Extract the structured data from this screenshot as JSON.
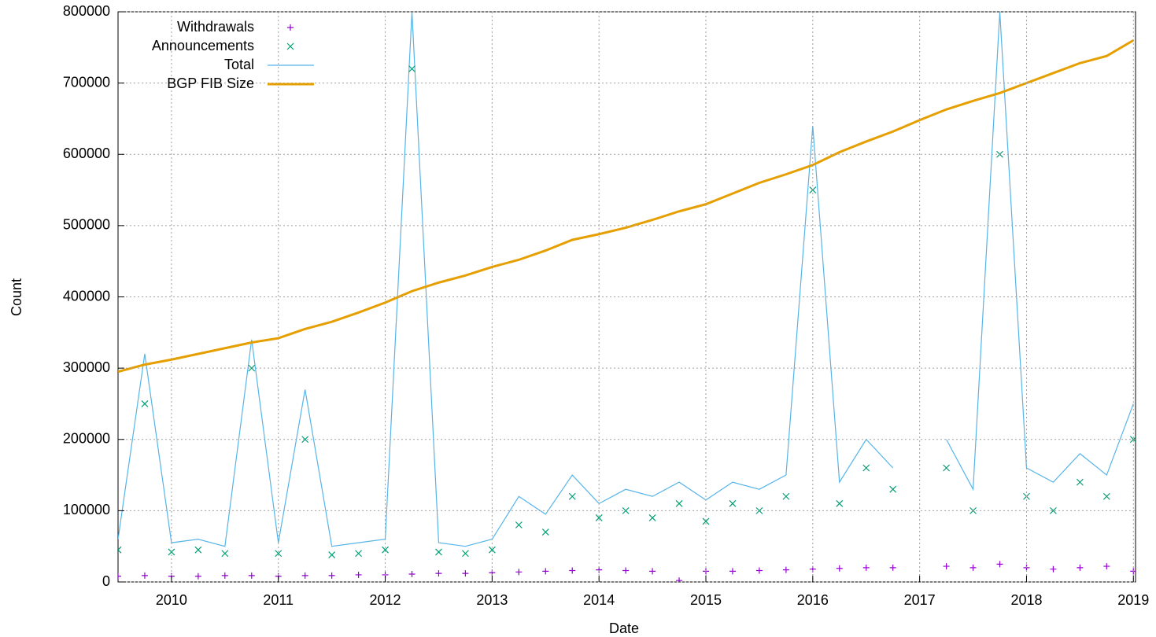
{
  "chart_data": {
    "type": "line",
    "x_label": "Date",
    "y_label": "Count",
    "x": [
      2009.5,
      2009.75,
      2010,
      2010.25,
      2010.5,
      2010.75,
      2011,
      2011.25,
      2011.5,
      2011.75,
      2012,
      2012.25,
      2012.5,
      2012.75,
      2013,
      2013.25,
      2013.5,
      2013.75,
      2014,
      2014.25,
      2014.5,
      2014.75,
      2015,
      2015.25,
      2015.5,
      2015.75,
      2016,
      2016.25,
      2016.5,
      2016.75,
      2017,
      2017.25,
      2017.5,
      2017.75,
      2018,
      2018.25,
      2018.5,
      2018.75,
      2019
    ],
    "xlim": [
      2009.5,
      2019.02
    ],
    "xticks": [
      2010,
      2011,
      2012,
      2013,
      2014,
      2015,
      2016,
      2017,
      2018,
      2019
    ],
    "ylim": [
      0,
      800000
    ],
    "yticks": [
      0,
      100000,
      200000,
      300000,
      400000,
      500000,
      600000,
      700000,
      800000
    ],
    "grid": true,
    "legend": "top-left",
    "series": [
      {
        "name": "Withdrawals",
        "color": "#9400d3",
        "marker": "plus",
        "values": [
          8000,
          9000,
          8000,
          8000,
          9000,
          9000,
          8000,
          9000,
          9000,
          10000,
          10000,
          11000,
          12000,
          12000,
          13000,
          14000,
          15000,
          16000,
          17000,
          16000,
          15000,
          2000,
          15000,
          15000,
          16000,
          17000,
          18000,
          19000,
          20000,
          20000,
          null,
          22000,
          20000,
          25000,
          20000,
          18000,
          20000,
          22000,
          15000
        ]
      },
      {
        "name": "Announcements",
        "color": "#009e73",
        "marker": "cross",
        "values": [
          45000,
          250000,
          42000,
          45000,
          40000,
          300000,
          40000,
          200000,
          38000,
          40000,
          45000,
          720000,
          42000,
          40000,
          45000,
          80000,
          70000,
          120000,
          90000,
          100000,
          90000,
          110000,
          85000,
          110000,
          100000,
          120000,
          550000,
          110000,
          160000,
          130000,
          null,
          160000,
          100000,
          600000,
          120000,
          100000,
          140000,
          120000,
          200000
        ]
      },
      {
        "name": "Total",
        "color": "#56b4e9",
        "marker": "line",
        "values": [
          60000,
          320000,
          55000,
          60000,
          50000,
          340000,
          55000,
          270000,
          50000,
          55000,
          60000,
          800000,
          55000,
          50000,
          60000,
          120000,
          95000,
          150000,
          110000,
          130000,
          120000,
          140000,
          115000,
          140000,
          130000,
          150000,
          640000,
          140000,
          200000,
          160000,
          null,
          200000,
          130000,
          800000,
          160000,
          140000,
          180000,
          150000,
          250000
        ]
      },
      {
        "name": "BGP FIB Size",
        "color": "#e69f00",
        "marker": "thick-line",
        "values": [
          295000,
          305000,
          312000,
          320000,
          328000,
          336000,
          342000,
          355000,
          365000,
          378000,
          392000,
          408000,
          420000,
          430000,
          442000,
          452000,
          465000,
          480000,
          488000,
          497000,
          508000,
          520000,
          530000,
          545000,
          560000,
          572000,
          585000,
          603000,
          618000,
          632000,
          648000,
          663000,
          675000,
          686000,
          700000,
          714000,
          728000,
          738000,
          760000
        ]
      }
    ]
  }
}
